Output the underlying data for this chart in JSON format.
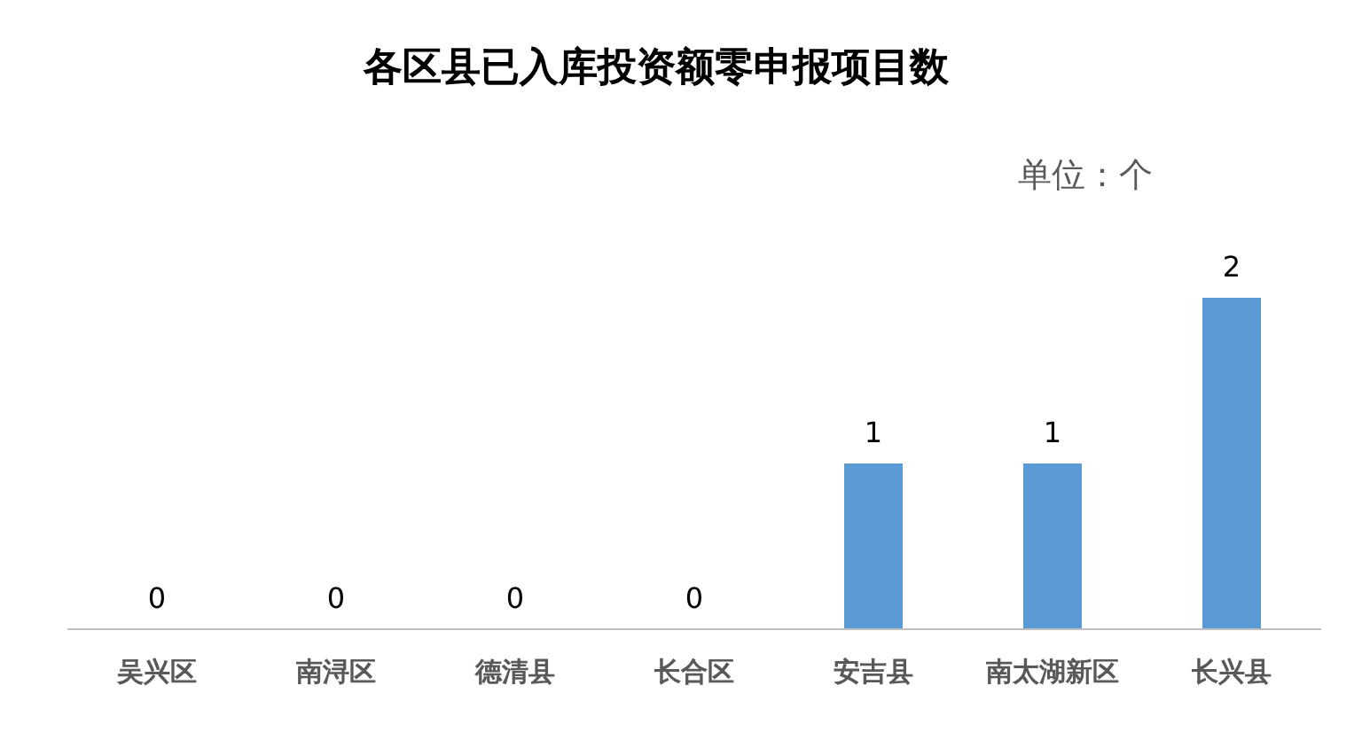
{
  "chart_data": {
    "type": "bar",
    "title": "各区县已入库投资额零申报项目数",
    "annotations": [
      "单位：个"
    ],
    "categories": [
      "吴兴区",
      "南浔区",
      "德清县",
      "长合区",
      "安吉县",
      "南太湖新区",
      "长兴县"
    ],
    "values": [
      0,
      0,
      0,
      0,
      1,
      1,
      2
    ],
    "color": "#5b9bd5",
    "data_labels": true
  }
}
